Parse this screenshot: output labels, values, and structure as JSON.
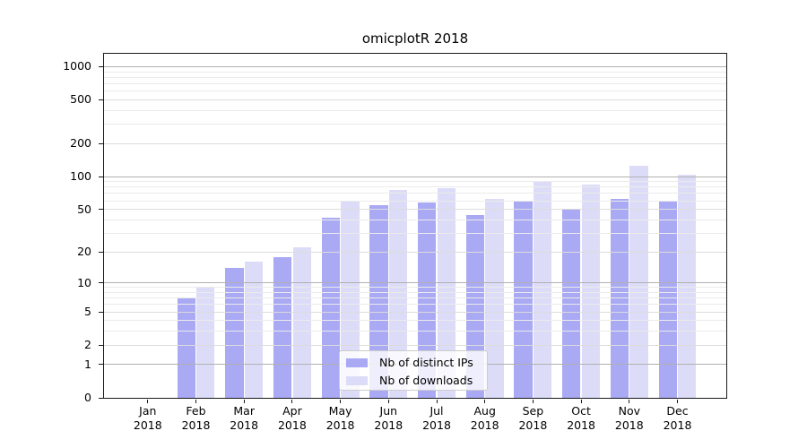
{
  "chart_data": {
    "type": "bar",
    "title": "omicplotR 2018",
    "categories": [
      "Jan 2018",
      "Feb 2018",
      "Mar 2018",
      "Apr 2018",
      "May 2018",
      "Jun 2018",
      "Jul 2018",
      "Aug 2018",
      "Sep 2018",
      "Oct 2018",
      "Nov 2018",
      "Dec 2018"
    ],
    "series": [
      {
        "name": "Nb of distinct IPs",
        "color": "#a9a9f4",
        "values": [
          0,
          7,
          14,
          18,
          42,
          55,
          58,
          44,
          59,
          50,
          62,
          59
        ]
      },
      {
        "name": "Nb of downloads",
        "color": "#dcdcf8",
        "values": [
          0,
          9,
          16,
          22,
          60,
          76,
          78,
          63,
          90,
          84,
          126,
          105
        ]
      }
    ],
    "yscale": "log1p",
    "ylim": [
      0,
      1310
    ],
    "yticks": [
      0,
      1,
      2,
      5,
      10,
      20,
      50,
      100,
      200,
      500,
      1000
    ],
    "grid": {
      "major_color": "#b0b0b0",
      "mid_color": "#dcdcdc",
      "minor_color": "#ebebeb",
      "axis_color": "#1a1a1a"
    },
    "legend": {
      "position": "bottom-center"
    }
  }
}
